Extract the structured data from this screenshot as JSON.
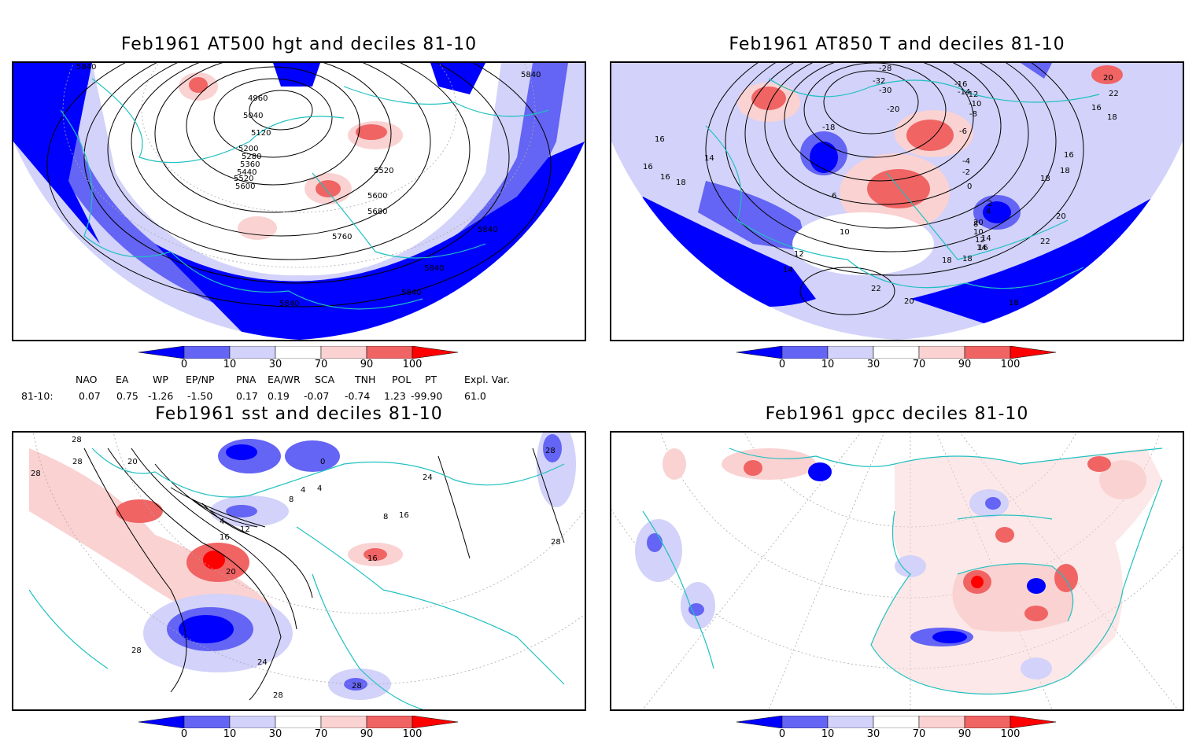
{
  "panels": [
    {
      "title": "Feb1961 AT500 hgt and deciles 81-10",
      "contour_labels": [
        "5840",
        "5840",
        "5040",
        "4960",
        "5120",
        "5200",
        "5280",
        "5360",
        "5440",
        "5520",
        "5600",
        "5520",
        "5600",
        "5680",
        "5760",
        "5840",
        "5840",
        "5840",
        "5840"
      ]
    },
    {
      "title": "Feb1961 AT850 T and deciles 81-10",
      "contour_labels": [
        "-28",
        "-32",
        "-30",
        "-16",
        "-14",
        "-12",
        "-10",
        "-8",
        "-6",
        "-20",
        "-18",
        "-4",
        "-2",
        "0",
        "2",
        "4",
        "6",
        "8",
        "10",
        "12",
        "14",
        "16",
        "18",
        "20",
        "22",
        "16",
        "16",
        "18",
        "16",
        "14",
        "16",
        "18",
        "18",
        "20",
        "22",
        "20",
        "18",
        "12",
        "14",
        "10",
        "18",
        "16",
        "14",
        "22",
        "20",
        "18"
      ]
    },
    {
      "title": "Feb1961 sst and deciles 81-10",
      "contour_labels": [
        "28",
        "28",
        "28",
        "20",
        "0",
        "4",
        "8",
        "12",
        "16",
        "4",
        "4",
        "8",
        "16",
        "16",
        "20",
        "24",
        "24",
        "28",
        "28",
        "28",
        "28",
        "28"
      ]
    },
    {
      "title": "Feb1961 gpcc deciles 81-10",
      "contour_labels": []
    }
  ],
  "colorbar": {
    "ticks": [
      "0",
      "10",
      "30",
      "70",
      "90",
      "100"
    ],
    "colors": [
      "#0000ff",
      "#6464f5",
      "#d2d2fa",
      "#ffffff",
      "#fad2d2",
      "#f06464",
      "#ff0000"
    ]
  },
  "indices": {
    "row_label": "81-10:",
    "headers": [
      "NAO",
      "EA",
      "WP",
      "EP/NP",
      "PNA",
      "EA/WR",
      "SCA",
      "TNH",
      "POL",
      "PT",
      "Expl. Var."
    ],
    "values": [
      "0.07",
      "0.75",
      "-1.26",
      "-1.50",
      "0.17",
      "0.19",
      "-0.07",
      "-0.74",
      "1.23",
      "-99.90",
      "61.0"
    ]
  }
}
